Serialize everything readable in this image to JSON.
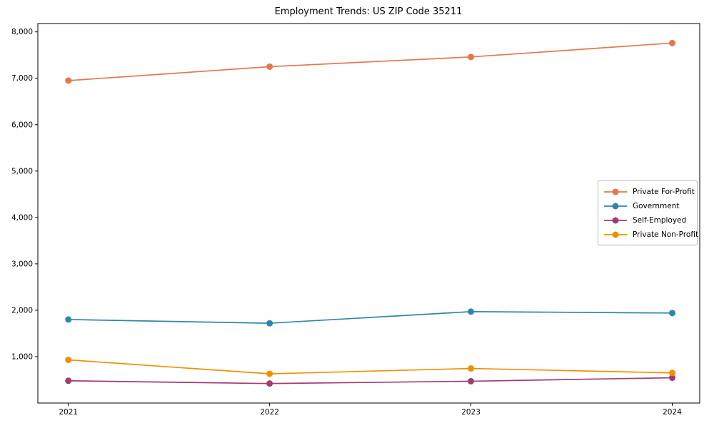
{
  "chart_data": {
    "type": "line",
    "title": "Employment Trends: US ZIP Code 35211",
    "xlabel": "",
    "ylabel": "",
    "categories": [
      "2021",
      "2022",
      "2023",
      "2024"
    ],
    "series": [
      {
        "name": "Private For-Profit",
        "color": "#E8764B",
        "values": [
          6950,
          7250,
          7460,
          7760
        ]
      },
      {
        "name": "Government",
        "color": "#2E86AB",
        "values": [
          1800,
          1720,
          1970,
          1940
        ]
      },
      {
        "name": "Self-Employed",
        "color": "#A23B72",
        "values": [
          480,
          420,
          470,
          545
        ]
      },
      {
        "name": "Private Non-Profit",
        "color": "#F18F01",
        "values": [
          930,
          630,
          745,
          650
        ]
      }
    ],
    "yticks": [
      1000,
      2000,
      3000,
      4000,
      5000,
      6000,
      7000,
      8000
    ],
    "ytick_labels": [
      "1,000",
      "2,000",
      "3,000",
      "4,000",
      "5,000",
      "6,000",
      "7,000",
      "8,000"
    ],
    "ylim": [
      0,
      8180
    ],
    "grid": false,
    "legend_position": "right",
    "marker": "circle",
    "axis_color": "#000000"
  }
}
